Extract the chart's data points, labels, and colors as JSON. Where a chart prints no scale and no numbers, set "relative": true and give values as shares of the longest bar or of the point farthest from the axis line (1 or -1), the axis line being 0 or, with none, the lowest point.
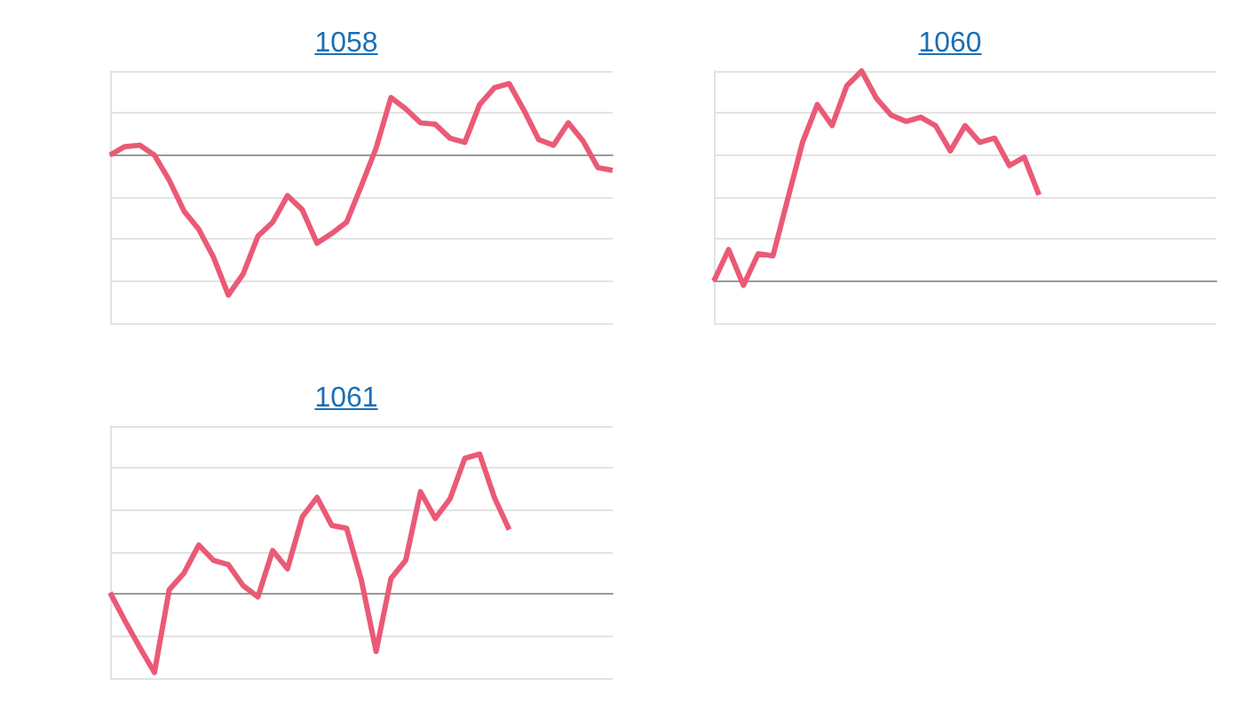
{
  "chart_data": [
    {
      "type": "line",
      "title": "1058",
      "relative": true,
      "grid": "y",
      "marker": "none",
      "color": "#ea5a76",
      "categories": [
        null,
        null,
        null,
        null,
        null,
        null,
        null,
        null,
        null,
        null,
        null,
        null,
        null,
        null,
        null,
        null,
        null,
        null,
        null,
        null,
        null,
        null,
        null,
        null,
        null,
        null,
        null,
        null,
        null,
        null,
        null,
        null,
        null,
        null,
        null
      ],
      "values": [
        0,
        0.06,
        0.07,
        0,
        -0.18,
        -0.4,
        -0.53,
        -0.73,
        -1,
        -0.85,
        -0.58,
        -0.48,
        -0.29,
        -0.39,
        -0.63,
        -0.56,
        -0.48,
        -0.22,
        0.05,
        0.41,
        0.33,
        0.23,
        0.22,
        0.12,
        0.09,
        0.36,
        0.48,
        0.51,
        0.32,
        0.11,
        0.07,
        0.23,
        0.1,
        -0.09,
        -0.11
      ]
    },
    {
      "type": "line",
      "title": "1060",
      "relative": true,
      "grid": "y",
      "marker": "none",
      "color": "#ea5a76",
      "categories": [
        null,
        null,
        null,
        null,
        null,
        null,
        null,
        null,
        null,
        null,
        null,
        null,
        null,
        null,
        null,
        null,
        null,
        null,
        null,
        null,
        null,
        null,
        null,
        null,
        null,
        null,
        null,
        null,
        null,
        null,
        null,
        null,
        null,
        null,
        null
      ],
      "values": [
        0,
        0.15,
        -0.02,
        0.13,
        0.12,
        0.39,
        0.66,
        0.84,
        0.74,
        0.93,
        1,
        0.87,
        0.79,
        0.76,
        0.78,
        0.74,
        0.62,
        0.74,
        0.66,
        0.68,
        0.55,
        0.59,
        0.41,
        null,
        null,
        null,
        null,
        null,
        null,
        null,
        null,
        null,
        null,
        null,
        null
      ]
    },
    {
      "type": "line",
      "title": "1061",
      "relative": true,
      "grid": "y",
      "marker": "none",
      "color": "#ea5a76",
      "categories": [
        null,
        null,
        null,
        null,
        null,
        null,
        null,
        null,
        null,
        null,
        null,
        null,
        null,
        null,
        null,
        null,
        null,
        null,
        null,
        null,
        null,
        null,
        null,
        null,
        null,
        null,
        null,
        null,
        null,
        null,
        null,
        null,
        null,
        null,
        null
      ],
      "values": [
        0.01,
        -0.19,
        -0.38,
        -0.56,
        0.03,
        0.15,
        0.35,
        0.24,
        0.21,
        0.06,
        -0.02,
        0.31,
        0.18,
        0.55,
        0.69,
        0.49,
        0.47,
        0.1,
        -0.41,
        0.11,
        0.24,
        0.73,
        0.54,
        0.68,
        0.97,
        1,
        0.69,
        0.46,
        null,
        null,
        null,
        null,
        null,
        null,
        null
      ]
    }
  ]
}
